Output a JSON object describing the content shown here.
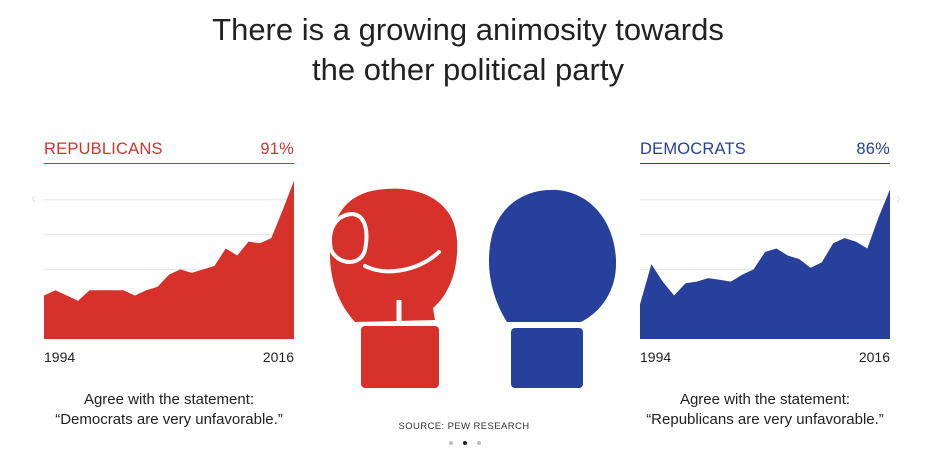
{
  "title": {
    "line1": "There is a growing animosity towards",
    "line2": "the other political party"
  },
  "colors": {
    "republican": "#d6322b",
    "democrat": "#26409b",
    "grid": "#e6e6e6"
  },
  "chart_data": [
    {
      "type": "area",
      "title": "REPUBLICANS",
      "value_label": "91%",
      "color": "#d6322b",
      "x": [
        1994,
        1995,
        1996,
        1997,
        1998,
        1999,
        2000,
        2001,
        2002,
        2003,
        2004,
        2005,
        2006,
        2007,
        2008,
        2009,
        2010,
        2011,
        2012,
        2013,
        2014,
        2015,
        2016
      ],
      "values": [
        25,
        28,
        25,
        22,
        28,
        28,
        28,
        28,
        25,
        28,
        30,
        37,
        40,
        38,
        40,
        42,
        52,
        48,
        56,
        55,
        58,
        74,
        91
      ],
      "ylim": [
        0,
        100
      ],
      "x_tick_labels": [
        "1994",
        "2016"
      ],
      "caption_line1": "Agree with the statement:",
      "caption_line2": "“Democrats are very unfavorable.”"
    },
    {
      "type": "area",
      "title": "DEMOCRATS",
      "value_label": "86%",
      "color": "#26409b",
      "x": [
        1994,
        1995,
        1996,
        1997,
        1998,
        1999,
        2000,
        2001,
        2002,
        2003,
        2004,
        2005,
        2006,
        2007,
        2008,
        2009,
        2010,
        2011,
        2012,
        2013,
        2014,
        2015,
        2016
      ],
      "values": [
        20,
        43,
        33,
        25,
        32,
        33,
        35,
        34,
        33,
        37,
        40,
        50,
        52,
        48,
        46,
        41,
        44,
        55,
        58,
        56,
        52,
        70,
        86
      ],
      "ylim": [
        0,
        100
      ],
      "x_tick_labels": [
        "1994",
        "2016"
      ],
      "caption_line1": "Agree with the statement:",
      "caption_line2": "“Republicans are very unfavorable.”"
    }
  ],
  "source": "SOURCE: PEW RESEARCH",
  "pagination": {
    "count": 3,
    "active": 2
  },
  "icons": [
    "red-boxing-glove-icon",
    "blue-boxing-glove-icon",
    "chevron-left-icon",
    "chevron-right-icon"
  ]
}
